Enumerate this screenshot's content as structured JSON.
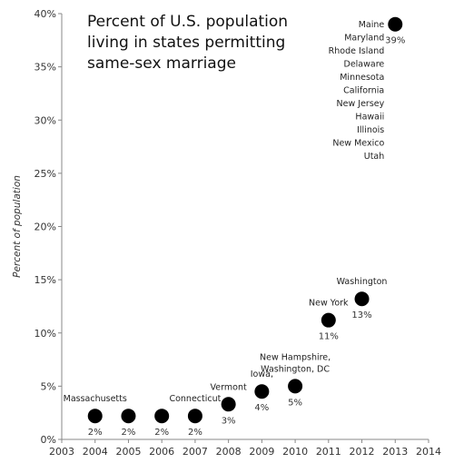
{
  "chart_data": {
    "type": "scatter",
    "title_lines": [
      "Percent of U.S. population",
      "living in states permitting",
      "same-sex marriage"
    ],
    "ylabel": "Percent of population",
    "xlabel": "",
    "xlim": [
      2003,
      2014
    ],
    "ylim": [
      0,
      40
    ],
    "x_ticks": [
      2003,
      2004,
      2005,
      2006,
      2007,
      2008,
      2009,
      2010,
      2011,
      2012,
      2013,
      2014
    ],
    "y_ticks": [
      0,
      5,
      10,
      15,
      20,
      25,
      30,
      35,
      40
    ],
    "y_tick_labels": [
      "0%",
      "5%",
      "10%",
      "15%",
      "20%",
      "25%",
      "30%",
      "35%",
      "40%"
    ],
    "grid": false,
    "points": [
      {
        "x": 2004,
        "y": 2.2,
        "value_label": "2%",
        "label_lines": [
          "Massachusetts"
        ]
      },
      {
        "x": 2005,
        "y": 2.2,
        "value_label": "2%",
        "label_lines": []
      },
      {
        "x": 2006,
        "y": 2.2,
        "value_label": "2%",
        "label_lines": []
      },
      {
        "x": 2007,
        "y": 2.2,
        "value_label": "2%",
        "label_lines": [
          "Connecticut"
        ]
      },
      {
        "x": 2008,
        "y": 3.3,
        "value_label": "3%",
        "label_lines": [
          "Vermont"
        ]
      },
      {
        "x": 2009,
        "y": 4.5,
        "value_label": "4%",
        "label_lines": [
          "Iowa,"
        ]
      },
      {
        "x": 2010,
        "y": 5.0,
        "value_label": "5%",
        "label_lines": [
          "New Hampshire,",
          "Washington, DC"
        ]
      },
      {
        "x": 2011,
        "y": 11.2,
        "value_label": "11%",
        "label_lines": [
          "New York"
        ]
      },
      {
        "x": 2012,
        "y": 13.2,
        "value_label": "13%",
        "label_lines": [
          "Washington"
        ]
      },
      {
        "x": 2013,
        "y": 39.0,
        "value_label": "39%",
        "label_lines": [
          "Maine",
          "Maryland",
          "Rhode Island",
          "Delaware",
          "Minnesota",
          "California",
          "New Jersey",
          "Hawaii",
          "Illinois",
          "New Mexico",
          "Utah"
        ]
      }
    ],
    "marker_color": "#000000"
  }
}
